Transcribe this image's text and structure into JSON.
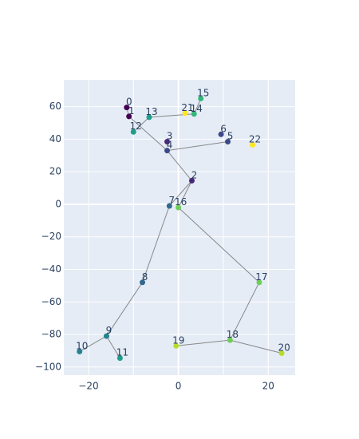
{
  "chart_data": {
    "type": "scatter",
    "title": "",
    "xlabel": "",
    "ylabel": "",
    "xlim": [
      -25.5,
      26
    ],
    "ylim": [
      -105,
      76.5
    ],
    "x_ticks": [
      -20,
      -10,
      0,
      10,
      20
    ],
    "x_tick_labels": [
      "−20",
      "",
      "0",
      "",
      "20"
    ],
    "y_ticks": [
      -100,
      -80,
      -60,
      -40,
      -20,
      0,
      20,
      40,
      60
    ],
    "y_tick_labels": [
      "−100",
      "−80",
      "−60",
      "−40",
      "−20",
      "0",
      "20",
      "40",
      "60"
    ],
    "grid": true,
    "colors": {
      "plot_bg": "#e5ecf6",
      "grid": "#ffffff",
      "line": "#888888",
      "text": "#2a3f5f",
      "colorscale": [
        "#440154",
        "#482878",
        "#3e4989",
        "#31688e",
        "#26828e",
        "#1f9e89",
        "#35b779",
        "#6ece58",
        "#b5de2b",
        "#fde725"
      ]
    },
    "points": [
      {
        "label": "0",
        "x": -11.5,
        "y": 59.5
      },
      {
        "label": "1",
        "x": -11,
        "y": 54
      },
      {
        "label": "2",
        "x": 3,
        "y": 14.5
      },
      {
        "label": "3",
        "x": -2.5,
        "y": 38.5
      },
      {
        "label": "4",
        "x": -2.5,
        "y": 33
      },
      {
        "label": "5",
        "x": 11,
        "y": 38.5
      },
      {
        "label": "6",
        "x": 9.5,
        "y": 43
      },
      {
        "label": "7",
        "x": -2,
        "y": -1
      },
      {
        "label": "8",
        "x": -8,
        "y": -48
      },
      {
        "label": "9",
        "x": -16,
        "y": -81
      },
      {
        "label": "10",
        "x": -22,
        "y": -90.5
      },
      {
        "label": "11",
        "x": -13,
        "y": -94.5
      },
      {
        "label": "12",
        "x": -10,
        "y": 44.5
      },
      {
        "label": "13",
        "x": -6.5,
        "y": 53.5
      },
      {
        "label": "14",
        "x": 3.5,
        "y": 55.5
      },
      {
        "label": "15",
        "x": 5,
        "y": 65
      },
      {
        "label": "16",
        "x": 0,
        "y": -2
      },
      {
        "label": "17",
        "x": 18,
        "y": -48
      },
      {
        "label": "18",
        "x": 11.5,
        "y": -83.5
      },
      {
        "label": "19",
        "x": -0.5,
        "y": -87
      },
      {
        "label": "20",
        "x": 23,
        "y": -91.5
      },
      {
        "label": "21",
        "x": 1.5,
        "y": 56
      },
      {
        "label": "22",
        "x": 16.5,
        "y": 36.5
      }
    ],
    "segments": [
      [
        0,
        1
      ],
      [
        1,
        4
      ],
      [
        4,
        5
      ],
      [
        4,
        2
      ],
      [
        2,
        7
      ],
      [
        7,
        8
      ],
      [
        8,
        9
      ],
      [
        9,
        10
      ],
      [
        9,
        11
      ],
      [
        12,
        13
      ],
      [
        13,
        14
      ],
      [
        14,
        15
      ],
      [
        2,
        16
      ],
      [
        16,
        17
      ],
      [
        17,
        18
      ],
      [
        18,
        19
      ],
      [
        18,
        20
      ]
    ]
  }
}
